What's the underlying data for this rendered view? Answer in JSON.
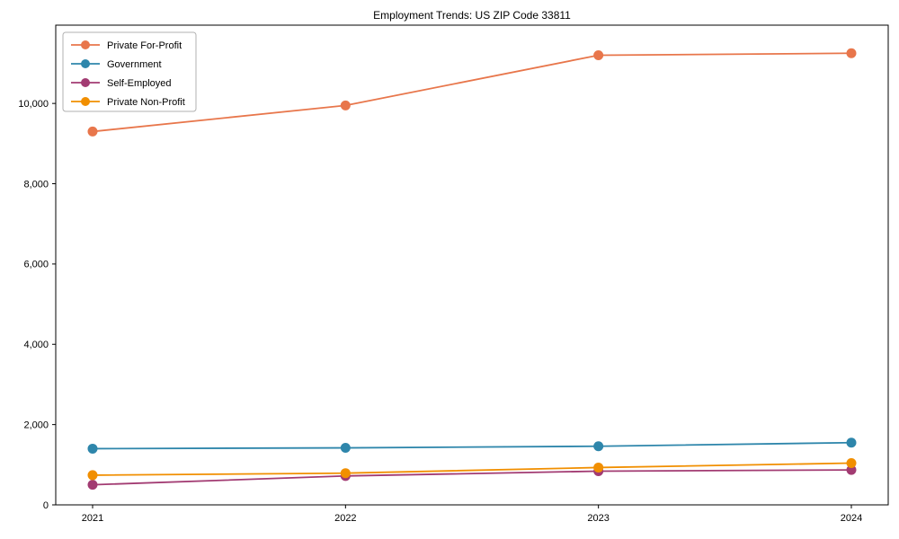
{
  "page": {
    "background": "#ffffff"
  },
  "chart_data": {
    "type": "line",
    "title": "Employment Trends: US ZIP Code 33811",
    "x_categories": [
      "2021",
      "2022",
      "2023",
      "2024"
    ],
    "series": [
      {
        "name": "Private For-Profit",
        "color": "#E8764B",
        "values": [
          9300,
          9950,
          11200,
          11250
        ]
      },
      {
        "name": "Government",
        "color": "#2E86AB",
        "values": [
          1400,
          1420,
          1460,
          1550
        ]
      },
      {
        "name": "Self-Employed",
        "color": "#A23B72",
        "values": [
          500,
          720,
          840,
          870
        ]
      },
      {
        "name": "Private Non-Profit",
        "color": "#F18F01",
        "values": [
          740,
          790,
          930,
          1040
        ]
      }
    ],
    "xlabel": "",
    "ylabel": "",
    "ylim": [
      0,
      11950
    ],
    "yticks": [
      0,
      2000,
      4000,
      6000,
      8000,
      10000
    ],
    "ytick_labels": [
      "0",
      "2,000",
      "4,000",
      "6,000",
      "8,000",
      "10,000"
    ],
    "grid": false,
    "legend_position": "upper left",
    "axis_color": "#000000",
    "text_color": "#000000",
    "legend_border_color": "#b0b0b0",
    "marker": "circle",
    "marker_radius": 5.5,
    "line_width": 1.8
  }
}
